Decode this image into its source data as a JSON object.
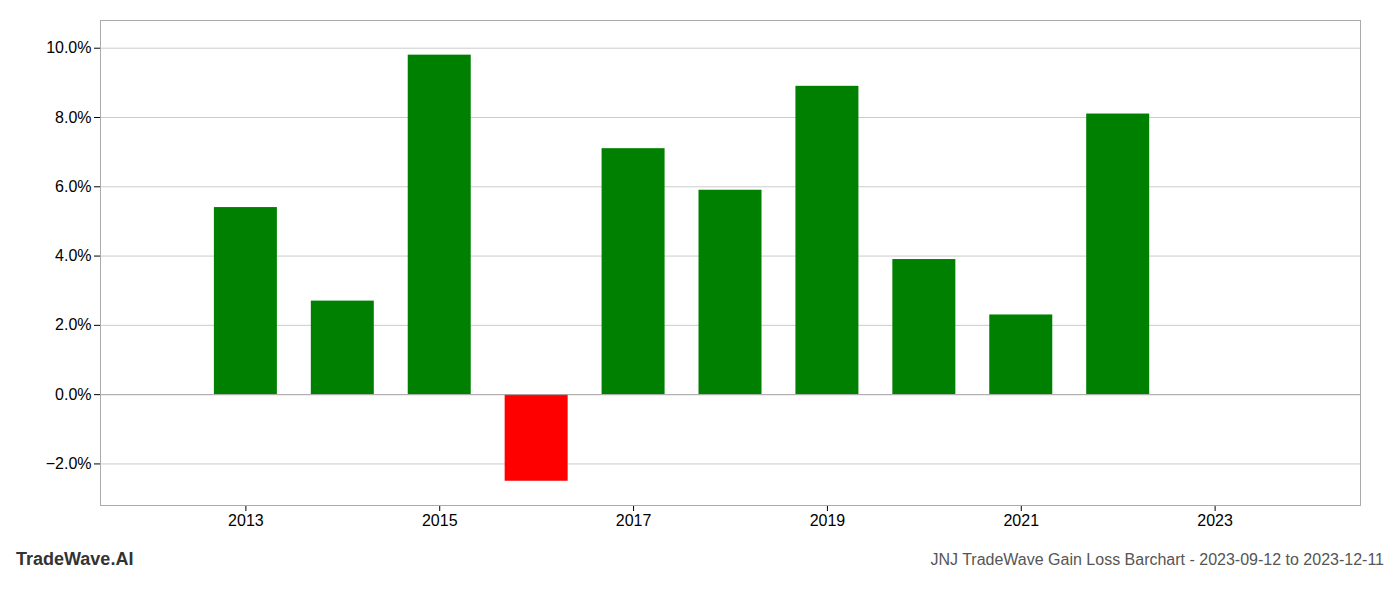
{
  "chart_data": {
    "type": "bar",
    "title": "JNJ TradeWave Gain Loss Barchart - 2023-09-12 to 2023-12-11",
    "annotations": [
      "TradeWave.AI"
    ],
    "x": [
      2013,
      2014,
      2015,
      2016,
      2017,
      2018,
      2019,
      2020,
      2021,
      2022
    ],
    "values": [
      0.054,
      0.027,
      0.098,
      -0.025,
      0.071,
      0.059,
      0.089,
      0.039,
      0.023,
      0.081
    ],
    "colors": [
      "#008000",
      "#008000",
      "#008000",
      "#ff0000",
      "#008000",
      "#008000",
      "#008000",
      "#008000",
      "#008000",
      "#008000"
    ],
    "xlim": [
      2011.5,
      2024.5
    ],
    "xticks": [
      2013,
      2015,
      2017,
      2019,
      2021,
      2023
    ],
    "ylim": [
      -0.032,
      0.108
    ],
    "yticks": [
      {
        "value": -0.02,
        "label": "−2.0%"
      },
      {
        "value": 0.0,
        "label": "0.0%"
      },
      {
        "value": 0.02,
        "label": "2.0%"
      },
      {
        "value": 0.04,
        "label": "4.0%"
      },
      {
        "value": 0.06,
        "label": "6.0%"
      },
      {
        "value": 0.08,
        "label": "8.0%"
      },
      {
        "value": 0.1,
        "label": "10.0%"
      }
    ],
    "grid": true
  }
}
